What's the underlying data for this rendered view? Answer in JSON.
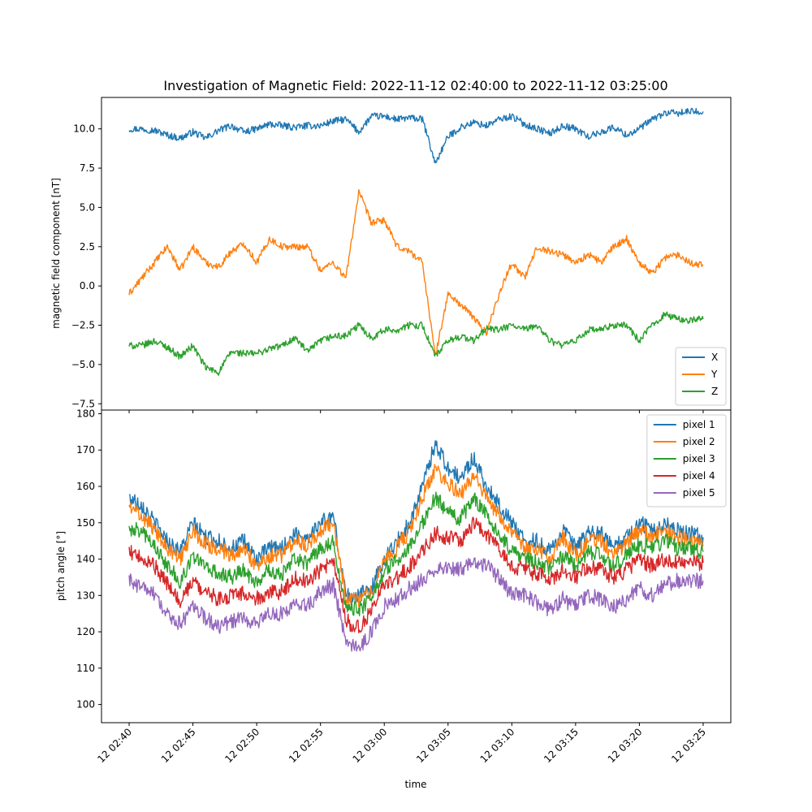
{
  "figure": {
    "title": "Investigation of Magnetic Field: 2022-11-12 02:40:00 to 2022-11-12 03:25:00",
    "xlabel": "time"
  },
  "chart_data": [
    {
      "type": "line",
      "title": "",
      "xlabel": "",
      "ylabel": "magnetic field component [nT]",
      "x_unit": "minutes after 2022-11-12 02:40",
      "xlim": [
        "2022-11-12 02:37:50",
        "2022-11-12 03:27:10"
      ],
      "ylim": [
        -7.9,
        12.0
      ],
      "yticks": [
        -7.5,
        -5.0,
        -2.5,
        0.0,
        2.5,
        5.0,
        7.5,
        10.0
      ],
      "ytick_labels": [
        "−7.5",
        "−5.0",
        "−2.5",
        "0.0",
        "2.5",
        "5.0",
        "7.5",
        "10.0"
      ],
      "grid": false,
      "legend_position": "lower-right",
      "x": [
        "2022-11-12 02:40",
        "2022-11-12 02:41",
        "2022-11-12 02:42",
        "2022-11-12 02:43",
        "2022-11-12 02:44",
        "2022-11-12 02:45",
        "2022-11-12 02:46",
        "2022-11-12 02:47",
        "2022-11-12 02:48",
        "2022-11-12 02:49",
        "2022-11-12 02:50",
        "2022-11-12 02:51",
        "2022-11-12 02:52",
        "2022-11-12 02:53",
        "2022-11-12 02:54",
        "2022-11-12 02:55",
        "2022-11-12 02:56",
        "2022-11-12 02:57",
        "2022-11-12 02:58",
        "2022-11-12 02:59",
        "2022-11-12 03:00",
        "2022-11-12 03:01",
        "2022-11-12 03:02",
        "2022-11-12 03:03",
        "2022-11-12 03:04",
        "2022-11-12 03:05",
        "2022-11-12 03:06",
        "2022-11-12 03:07",
        "2022-11-12 03:08",
        "2022-11-12 03:09",
        "2022-11-12 03:10",
        "2022-11-12 03:11",
        "2022-11-12 03:12",
        "2022-11-12 03:13",
        "2022-11-12 03:14",
        "2022-11-12 03:15",
        "2022-11-12 03:16",
        "2022-11-12 03:17",
        "2022-11-12 03:18",
        "2022-11-12 03:19",
        "2022-11-12 03:20",
        "2022-11-12 03:21",
        "2022-11-12 03:22",
        "2022-11-12 03:23",
        "2022-11-12 03:24",
        "2022-11-12 03:25"
      ],
      "series": [
        {
          "name": "X",
          "color": "#1f77b4",
          "values": [
            10.0,
            10.0,
            9.9,
            9.6,
            9.4,
            9.8,
            9.4,
            9.9,
            10.2,
            9.8,
            10.0,
            10.3,
            10.2,
            10.1,
            10.2,
            10.2,
            10.5,
            10.6,
            9.8,
            10.8,
            10.8,
            10.6,
            10.7,
            10.6,
            7.8,
            9.5,
            10.1,
            10.4,
            10.2,
            10.6,
            10.8,
            10.3,
            10.0,
            9.7,
            10.2,
            10.0,
            9.5,
            9.8,
            10.1,
            9.6,
            10.0,
            10.6,
            11.0,
            11.0,
            11.1,
            11.1
          ]
        },
        {
          "name": "Y",
          "color": "#ff7f0e",
          "values": [
            -0.5,
            0.5,
            1.5,
            2.5,
            1.0,
            2.5,
            1.5,
            1.2,
            2.2,
            2.7,
            1.5,
            3.0,
            2.5,
            2.5,
            2.5,
            1.0,
            1.5,
            0.5,
            6.0,
            4.0,
            4.2,
            2.5,
            2.2,
            1.5,
            -4.5,
            -0.5,
            -1.2,
            -2.0,
            -3.0,
            -0.5,
            1.5,
            0.5,
            2.5,
            2.2,
            2.0,
            1.5,
            2.0,
            1.5,
            2.5,
            3.0,
            1.5,
            0.8,
            1.8,
            2.0,
            1.5,
            1.3
          ]
        },
        {
          "name": "Z",
          "color": "#2ca02c",
          "values": [
            -3.8,
            -3.8,
            -3.5,
            -3.9,
            -4.5,
            -3.8,
            -5.2,
            -5.5,
            -4.2,
            -4.3,
            -4.3,
            -4.0,
            -3.8,
            -3.3,
            -4.2,
            -3.5,
            -3.2,
            -3.2,
            -2.5,
            -3.3,
            -2.8,
            -2.8,
            -2.5,
            -2.5,
            -4.5,
            -3.5,
            -3.2,
            -3.5,
            -2.7,
            -2.8,
            -2.5,
            -2.8,
            -2.5,
            -3.5,
            -3.8,
            -3.5,
            -2.8,
            -2.8,
            -2.5,
            -2.5,
            -3.5,
            -2.5,
            -1.8,
            -2.1,
            -2.2,
            -2.1
          ]
        }
      ]
    },
    {
      "type": "line",
      "title": "",
      "xlabel": "time",
      "ylabel": "pitch angle [°]",
      "xlim": [
        "2022-11-12 02:37:50",
        "2022-11-12 03:27:10"
      ],
      "ylim": [
        95,
        181
      ],
      "yticks": [
        100,
        110,
        120,
        130,
        140,
        150,
        160,
        170,
        180
      ],
      "xticks": [
        "2022-11-12 02:40",
        "2022-11-12 02:45",
        "2022-11-12 02:50",
        "2022-11-12 02:55",
        "2022-11-12 03:00",
        "2022-11-12 03:05",
        "2022-11-12 03:10",
        "2022-11-12 03:15",
        "2022-11-12 03:20",
        "2022-11-12 03:25"
      ],
      "xtick_labels": [
        "12 02:40",
        "12 02:45",
        "12 02:50",
        "12 02:55",
        "12 03:00",
        "12 03:05",
        "12 03:10",
        "12 03:15",
        "12 03:20",
        "12 03:25"
      ],
      "grid": false,
      "legend_position": "upper-right",
      "x": [
        "2022-11-12 02:40",
        "2022-11-12 02:41",
        "2022-11-12 02:42",
        "2022-11-12 02:43",
        "2022-11-12 02:44",
        "2022-11-12 02:45",
        "2022-11-12 02:46",
        "2022-11-12 02:47",
        "2022-11-12 02:48",
        "2022-11-12 02:49",
        "2022-11-12 02:50",
        "2022-11-12 02:51",
        "2022-11-12 02:52",
        "2022-11-12 02:53",
        "2022-11-12 02:54",
        "2022-11-12 02:55",
        "2022-11-12 02:56",
        "2022-11-12 02:57",
        "2022-11-12 02:58",
        "2022-11-12 02:59",
        "2022-11-12 03:00",
        "2022-11-12 03:01",
        "2022-11-12 03:02",
        "2022-11-12 03:03",
        "2022-11-12 03:04",
        "2022-11-12 03:05",
        "2022-11-12 03:06",
        "2022-11-12 03:07",
        "2022-11-12 03:08",
        "2022-11-12 03:09",
        "2022-11-12 03:10",
        "2022-11-12 03:11",
        "2022-11-12 03:12",
        "2022-11-12 03:13",
        "2022-11-12 03:14",
        "2022-11-12 03:15",
        "2022-11-12 03:16",
        "2022-11-12 03:17",
        "2022-11-12 03:18",
        "2022-11-12 03:19",
        "2022-11-12 03:20",
        "2022-11-12 03:21",
        "2022-11-12 03:22",
        "2022-11-12 03:23",
        "2022-11-12 03:24",
        "2022-11-12 03:25"
      ],
      "series": [
        {
          "name": "pixel 1",
          "color": "#1f77b4",
          "values": [
            157,
            155,
            150,
            145,
            142,
            150,
            146,
            145,
            143,
            145,
            140,
            143,
            143,
            147,
            146,
            150,
            152,
            130,
            130,
            132,
            140,
            145,
            150,
            160,
            172,
            165,
            162,
            168,
            160,
            155,
            150,
            145,
            145,
            142,
            148,
            143,
            147,
            147,
            143,
            146,
            150,
            148,
            150,
            148,
            147,
            146
          ]
        },
        {
          "name": "pixel 2",
          "color": "#ff7f0e",
          "values": [
            154,
            152,
            148,
            143,
            140,
            148,
            144,
            143,
            141,
            143,
            138,
            141,
            141,
            145,
            144,
            148,
            150,
            129,
            129,
            131,
            139,
            143,
            148,
            157,
            165,
            161,
            158,
            163,
            157,
            152,
            148,
            143,
            143,
            140,
            146,
            141,
            145,
            145,
            141,
            144,
            148,
            146,
            148,
            146,
            145,
            144
          ]
        },
        {
          "name": "pixel 3",
          "color": "#2ca02c",
          "values": [
            148,
            148,
            143,
            138,
            134,
            141,
            138,
            136,
            135,
            137,
            133,
            137,
            136,
            140,
            139,
            143,
            145,
            127,
            126,
            129,
            137,
            140,
            144,
            150,
            157,
            153,
            151,
            157,
            152,
            147,
            142,
            140,
            139,
            137,
            141,
            138,
            142,
            141,
            138,
            141,
            144,
            143,
            145,
            143,
            143,
            142
          ]
        },
        {
          "name": "pixel 4",
          "color": "#d62728",
          "values": [
            142,
            140,
            138,
            133,
            128,
            134,
            131,
            129,
            130,
            131,
            129,
            131,
            131,
            135,
            134,
            137,
            140,
            123,
            121,
            126,
            133,
            135,
            138,
            142,
            147,
            146,
            145,
            150,
            147,
            143,
            138,
            137,
            136,
            134,
            137,
            135,
            138,
            137,
            135,
            137,
            140,
            138,
            140,
            139,
            139,
            139
          ]
        },
        {
          "name": "pixel 5",
          "color": "#9467bd",
          "values": [
            134,
            132,
            130,
            125,
            122,
            127,
            124,
            121,
            123,
            124,
            122,
            125,
            125,
            128,
            127,
            131,
            133,
            117,
            115,
            120,
            127,
            129,
            132,
            134,
            137,
            138,
            137,
            140,
            138,
            135,
            130,
            130,
            128,
            126,
            129,
            127,
            130,
            129,
            127,
            129,
            132,
            130,
            133,
            134,
            134,
            134
          ]
        }
      ]
    }
  ]
}
